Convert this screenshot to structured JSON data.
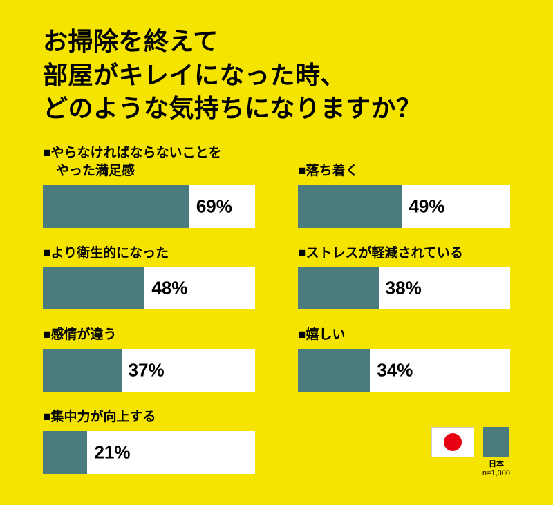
{
  "colors": {
    "background": "#F5E400",
    "bar_fill": "#4A7C7D",
    "bar_track": "#FFFFFF",
    "text": "#000000",
    "flag_red": "#E60012"
  },
  "title": {
    "lines": [
      "お掃除を終えて",
      "部屋がキレイになった時、",
      "どのような気持ちになりますか？"
    ]
  },
  "chart_data": {
    "type": "bar",
    "orientation": "horizontal",
    "title": "お掃除を終えて部屋がキレイになった時、どのような気持ちになりますか？",
    "unit": "%",
    "xlim": [
      0,
      100
    ],
    "categories": [
      "やらなければならないことをやった満足感",
      "より衛生的になった",
      "感情が違う",
      "集中力が向上する",
      "落ち着く",
      "ストレスが軽減されている",
      "嬉しい"
    ],
    "values": [
      69,
      48,
      37,
      21,
      49,
      38,
      34
    ],
    "columns": [
      {
        "items": [
          {
            "label_lines": [
              "■やらなければならないことを",
              "　やった満足感"
            ],
            "category": "やらなければならないことをやった満足感",
            "value": 69,
            "value_label": "69%"
          },
          {
            "label_lines": [
              "■より衛生的になった"
            ],
            "category": "より衛生的になった",
            "value": 48,
            "value_label": "48%"
          },
          {
            "label_lines": [
              "■感情が違う"
            ],
            "category": "感情が違う",
            "value": 37,
            "value_label": "37%"
          },
          {
            "label_lines": [
              "■集中力が向上する"
            ],
            "category": "集中力が向上する",
            "value": 21,
            "value_label": "21%"
          }
        ]
      },
      {
        "items": [
          {
            "label_lines": [
              "■落ち着く"
            ],
            "category": "落ち着く",
            "value": 49,
            "value_label": "49%"
          },
          {
            "label_lines": [
              "■ストレスが軽減されている"
            ],
            "category": "ストレスが軽減されている",
            "value": 38,
            "value_label": "38%"
          },
          {
            "label_lines": [
              "■嬉しい"
            ],
            "category": "嬉しい",
            "value": 34,
            "value_label": "34%"
          }
        ]
      }
    ],
    "legend": {
      "country_label": "日本",
      "sample_label": "n=1,000",
      "flag_icon": "japan-flag",
      "series_color": "#4A7C7D",
      "position": "bottom-right"
    }
  }
}
